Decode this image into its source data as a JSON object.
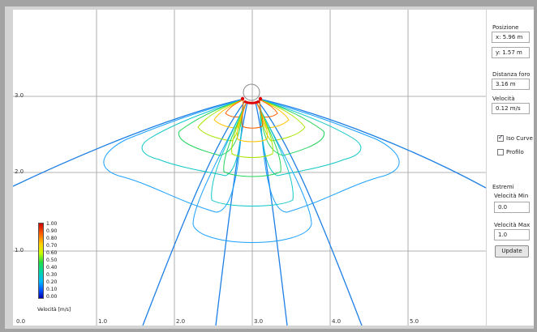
{
  "panel": {
    "posizione_label": "Posizione",
    "x_value": "x: 5.96 m",
    "y_value": "y: 1.57 m",
    "distanza_label": "Distanza foro",
    "distanza_value": "3.16 m",
    "velocita_label": "Velocità",
    "velocita_value": "0.12 m/s",
    "iso_curve_label": "Iso Curve",
    "iso_curve_checked": true,
    "profilo_label": "Profilo",
    "profilo_checked": false,
    "estremi_label": "Estremi",
    "vel_min_label": "Velocità Min",
    "vel_min_value": "0.0",
    "vel_max_label": "Velocità Max",
    "vel_max_value": "1.0",
    "update_label": "Update"
  },
  "plot": {
    "x_ticks": [
      "0.0",
      "1.0",
      "2.0",
      "3.0",
      "4.0",
      "5.0"
    ],
    "y_ticks": [
      "3.0",
      "2.0",
      "1.0"
    ]
  },
  "legend": {
    "values": [
      "1.00",
      "0.90",
      "0.80",
      "0.70",
      "0.60",
      "0.50",
      "0.40",
      "0.30",
      "0.20",
      "0.10",
      "0.00"
    ],
    "title": "Velocità [m/s]"
  },
  "colors": {
    "contour_low": "#0a8cff",
    "contour_high": "#ff2000",
    "grid": "#9a9a9a"
  }
}
